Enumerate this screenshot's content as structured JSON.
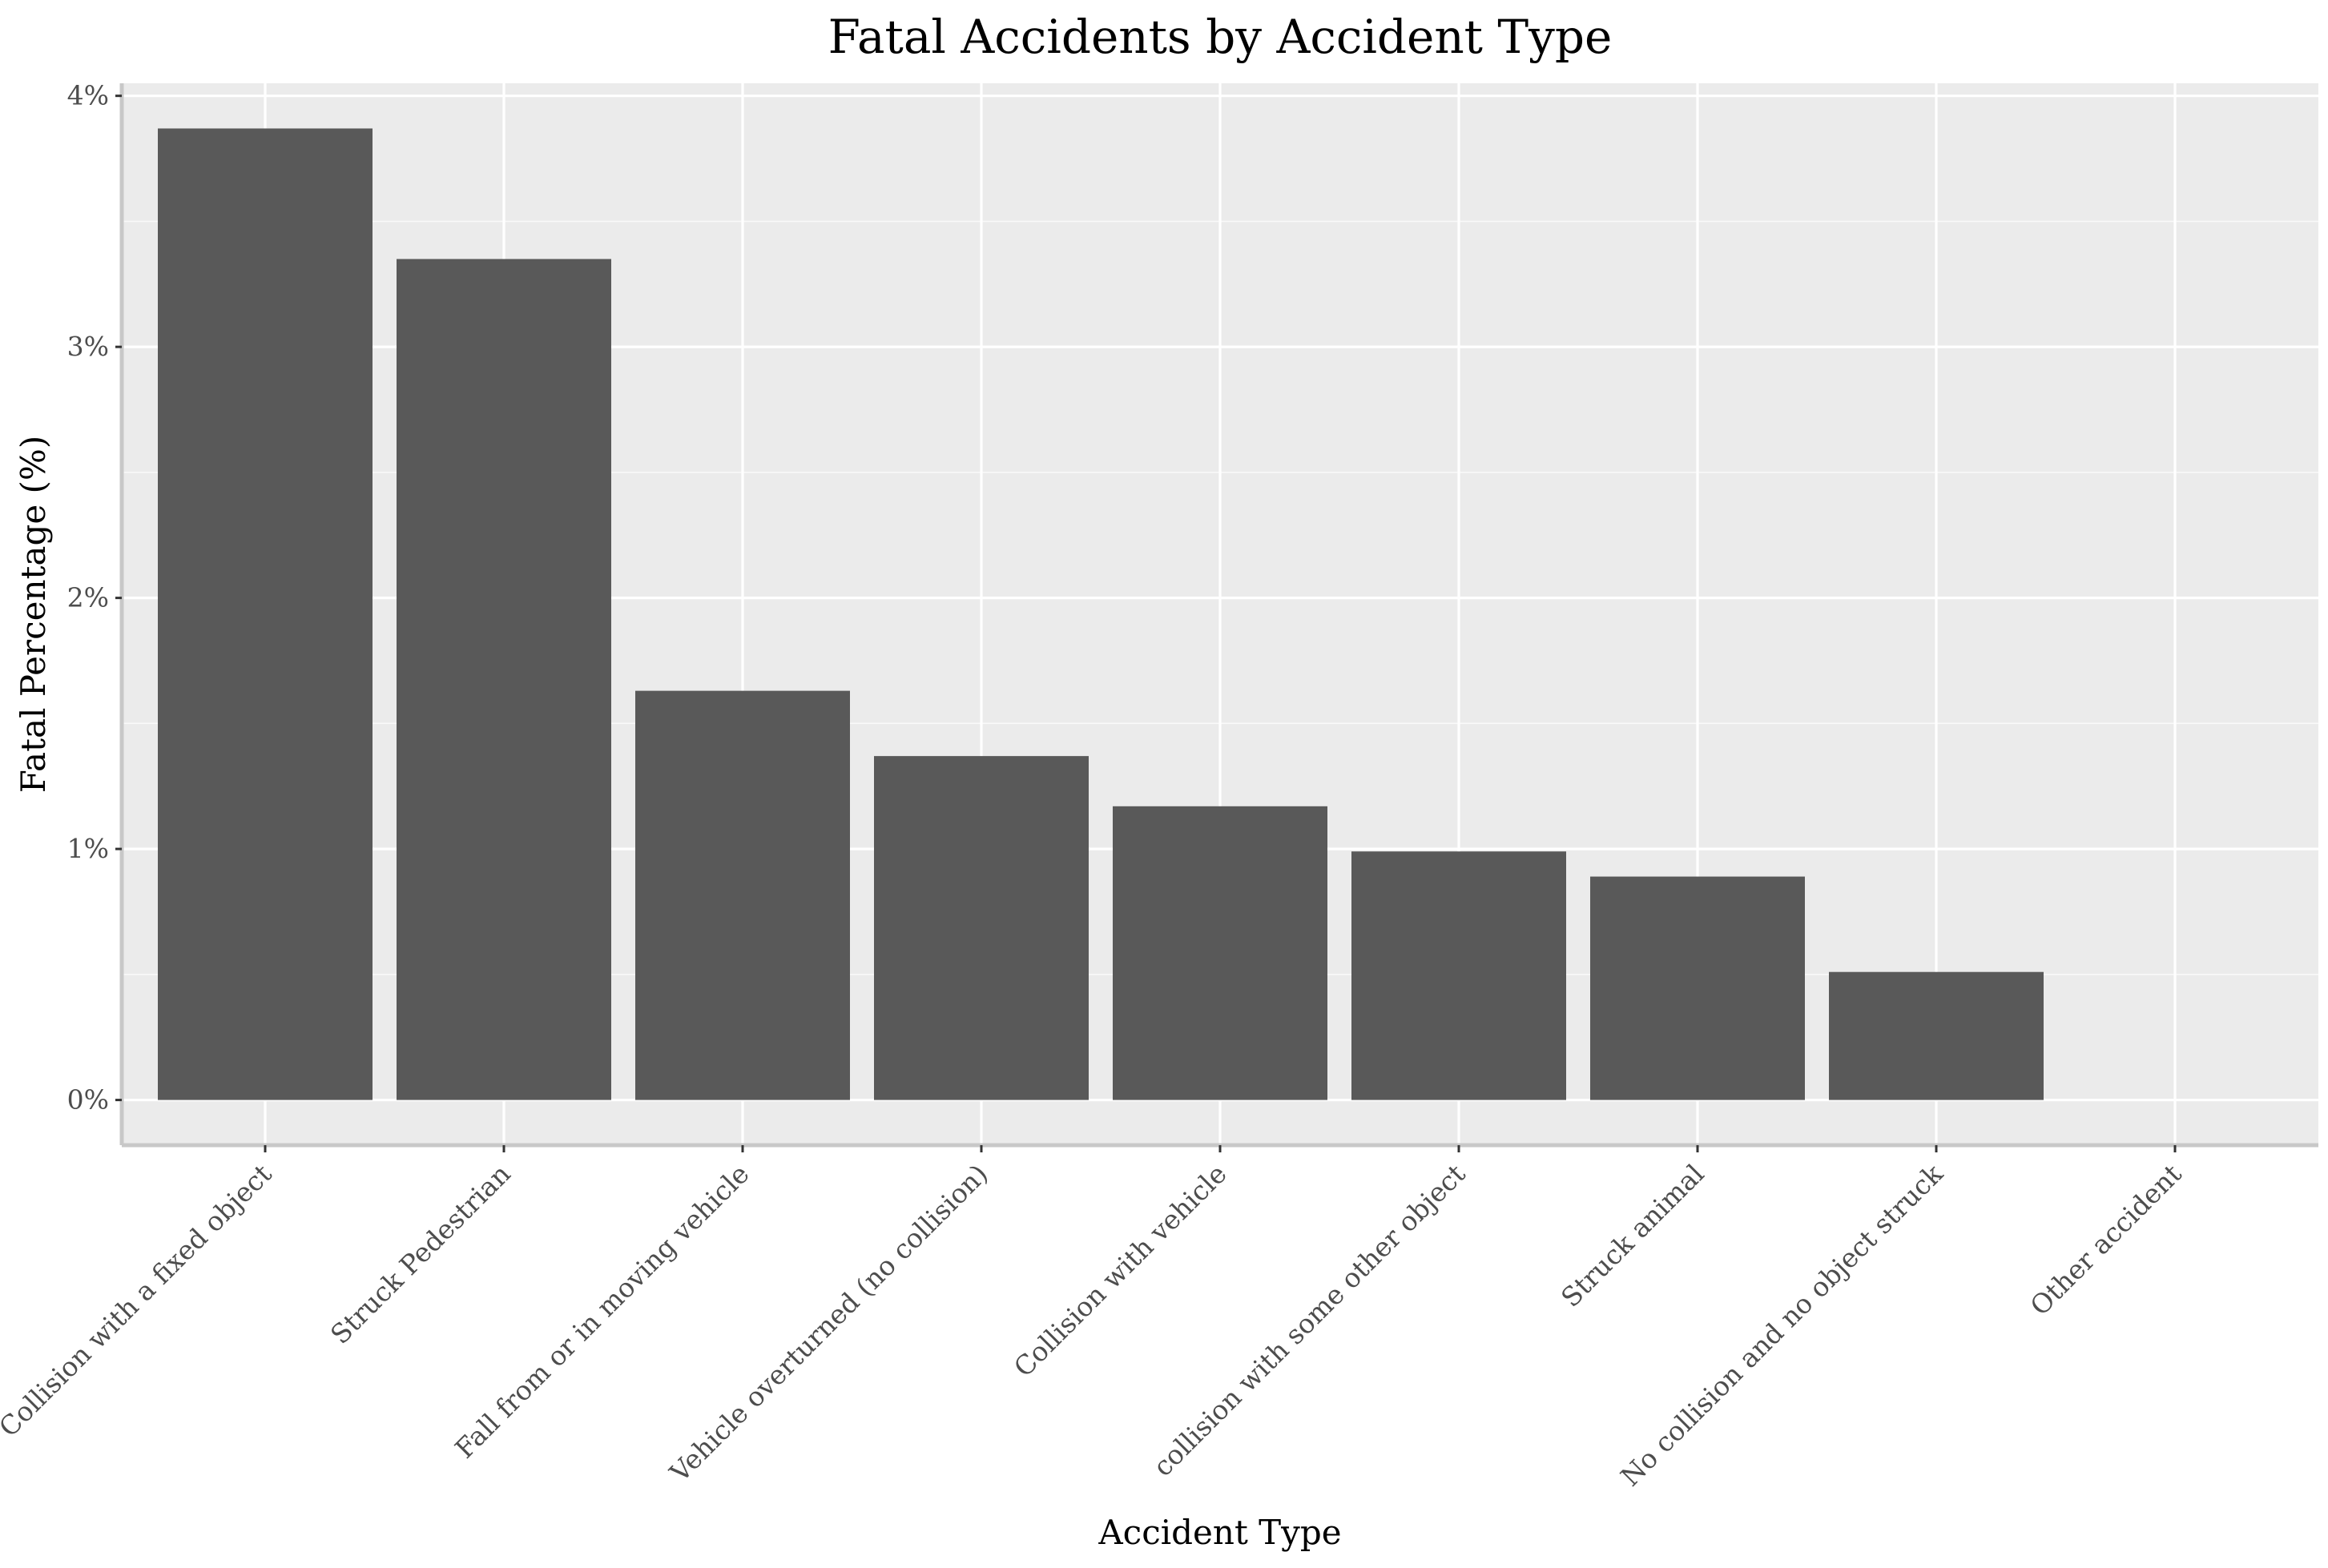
{
  "chart_data": {
    "type": "bar",
    "title": "Fatal Accidents by Accident Type",
    "xlabel": "Accident Type",
    "ylabel": "Fatal Percentage (%)",
    "categories": [
      "Collision with a fixed object",
      "Struck Pedestrian",
      "Fall from or in moving vehicle",
      "Vehicle overturned (no collision)",
      "Collision with vehicle",
      "collision with some other object",
      "Struck animal",
      "No collision and no object struck",
      "Other accident"
    ],
    "values": [
      3.87,
      3.35,
      1.63,
      1.37,
      1.17,
      0.99,
      0.89,
      0.51,
      0
    ],
    "ylim": [
      -0.18,
      4.05
    ],
    "y_ticks": [
      0,
      1,
      2,
      3,
      4
    ],
    "y_tick_labels": [
      "0%",
      "1%",
      "2%",
      "3%",
      "4%"
    ],
    "grid": true,
    "legend": "none",
    "colors": {
      "bar": "#595959",
      "panel": "#ebebeb",
      "grid_major": "#ffffff",
      "axis_line": "#c8c8c8",
      "tick_text": "#4d4d4d",
      "text": "#000000"
    }
  }
}
